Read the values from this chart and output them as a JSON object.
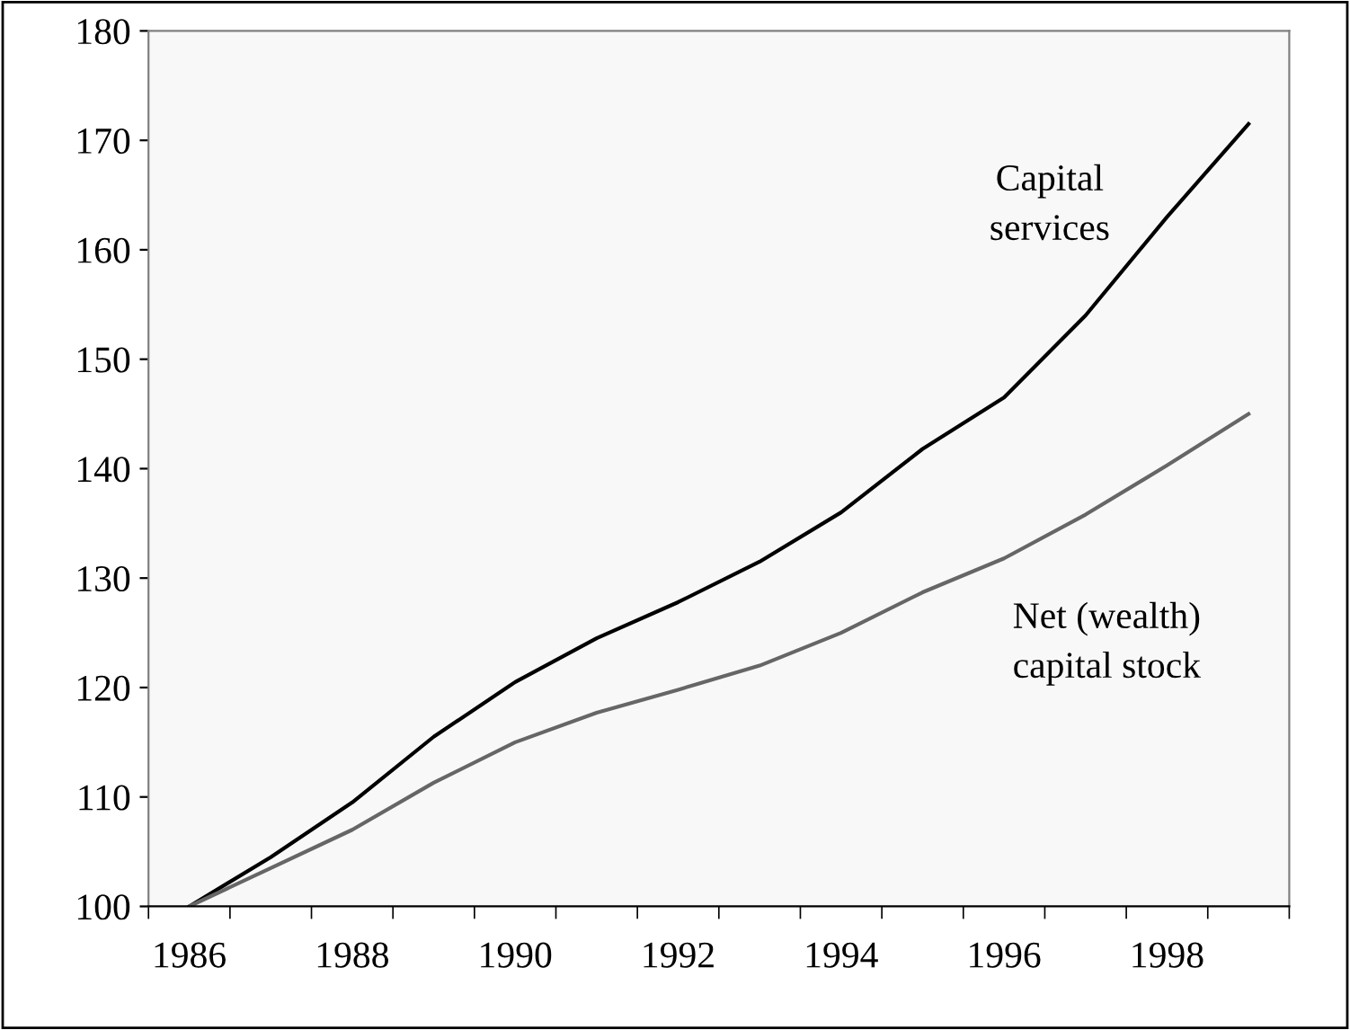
{
  "chart_data": {
    "type": "line",
    "categories": [
      "1986",
      null,
      "1988",
      null,
      "1990",
      null,
      "1992",
      null,
      "1994",
      null,
      "1996",
      null,
      "1998",
      null
    ],
    "series": [
      {
        "color": "#000000",
        "values": [
          100,
          104.5,
          109.5,
          115.5,
          120.5,
          124.5,
          127.8,
          131.5,
          136,
          141.8,
          146.5,
          154,
          163,
          171.5
        ]
      },
      {
        "color": "#666666",
        "values": [
          100,
          103.5,
          107,
          111.3,
          115,
          117.7,
          119.8,
          122,
          125,
          128.7,
          131.8,
          135.8,
          140.3,
          145
        ]
      }
    ],
    "annotations": [
      "Capital\nservices",
      "Net (wealth)\ncapital stock"
    ],
    "ylim": [
      100,
      180
    ],
    "yticks": [
      100,
      110,
      120,
      130,
      140,
      150,
      160,
      170,
      180
    ],
    "grid": false,
    "legend": false,
    "marker": "none",
    "line_style": "solid"
  }
}
